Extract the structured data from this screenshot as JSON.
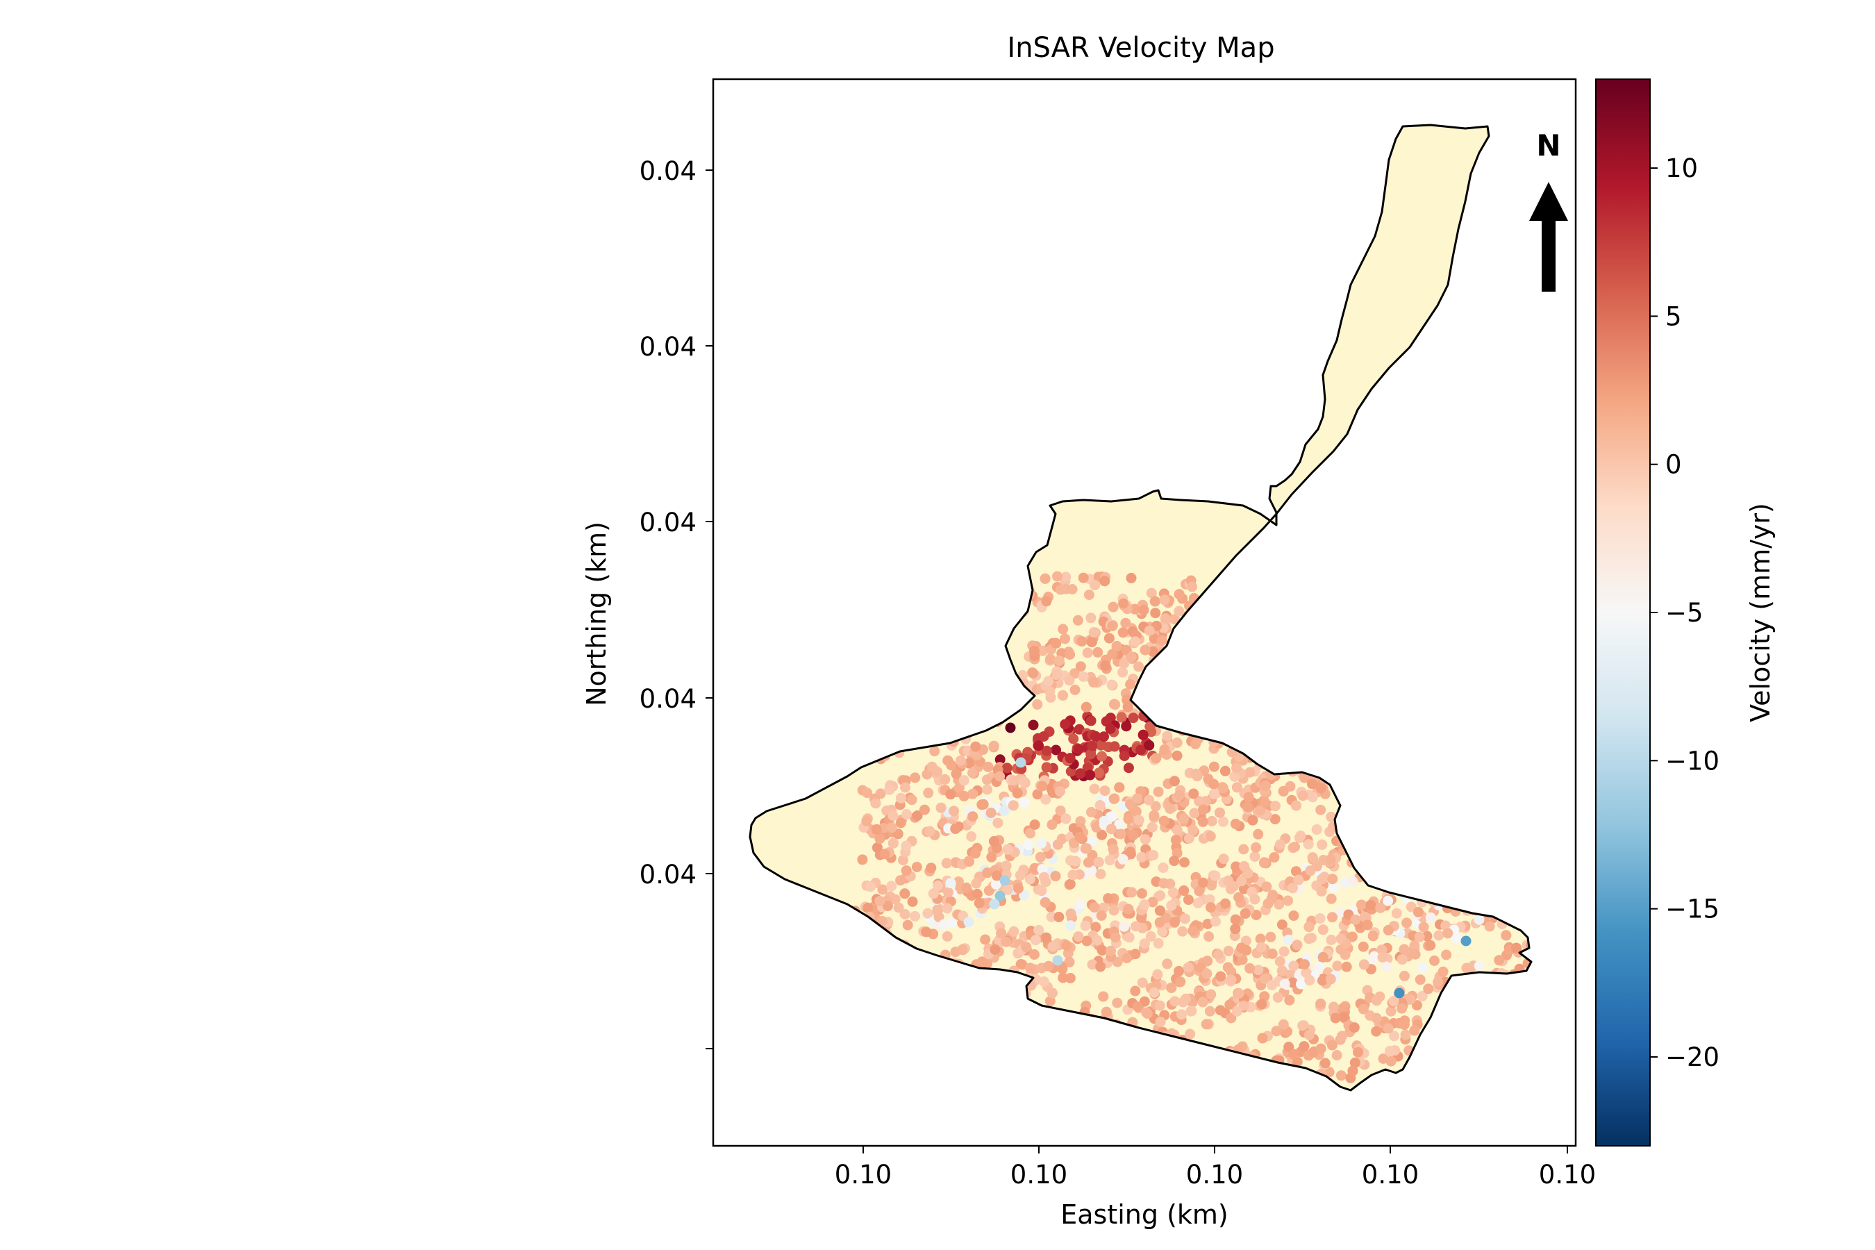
{
  "chart_data": {
    "type": "scatter",
    "title": "InSAR Velocity Map",
    "xlabel": "Easting (km)",
    "ylabel": "Northing (km)",
    "x_tick_labels": [
      "0.10",
      "0.10",
      "0.10",
      "0.10",
      "0.10"
    ],
    "y_tick_labels": [
      "0.04",
      "0.04",
      "0.04",
      "0.04",
      "0.04"
    ],
    "north_arrow_label": "N",
    "colorbar": {
      "label": "Velocity (mm/yr)",
      "colormap": "RdBu_r",
      "range": [
        -23,
        13
      ],
      "tick_values": [
        10,
        5,
        0,
        -5,
        -10,
        -15,
        -20
      ],
      "tick_labels": [
        "10",
        "5",
        "0",
        "−5",
        "−10",
        "−15",
        "−20"
      ]
    },
    "region_fill_color": "#fdf6cf",
    "grid": false,
    "legend": "none"
  }
}
